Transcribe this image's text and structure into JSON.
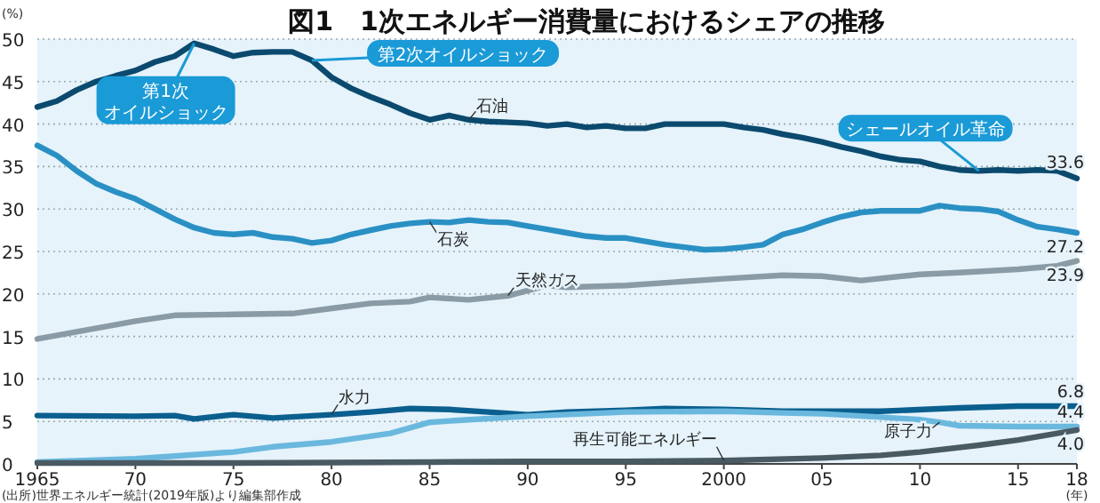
{
  "chart_data": {
    "type": "line",
    "title": "図1　1次エネルギー消費量におけるシェアの推移",
    "ylabel": "(%)",
    "xlabel": "(年)",
    "xlim": [
      1965,
      2018
    ],
    "ylim": [
      0,
      50
    ],
    "xticks": [
      {
        "value": 1965,
        "label": "1965"
      },
      {
        "value": 1970,
        "label": "70"
      },
      {
        "value": 1975,
        "label": "75"
      },
      {
        "value": 1980,
        "label": "80"
      },
      {
        "value": 1985,
        "label": "85"
      },
      {
        "value": 1990,
        "label": "90"
      },
      {
        "value": 1995,
        "label": "95"
      },
      {
        "value": 2000,
        "label": "2000"
      },
      {
        "value": 2005,
        "label": "05"
      },
      {
        "value": 2010,
        "label": "10"
      },
      {
        "value": 2015,
        "label": "15"
      },
      {
        "value": 2018,
        "label": "18"
      }
    ],
    "yticks": [
      0,
      5,
      10,
      15,
      20,
      25,
      30,
      35,
      40,
      45,
      50
    ],
    "grid": "y",
    "legend": false,
    "marker": "none",
    "line_style": "solid",
    "series": [
      {
        "name": "石油",
        "color": "#0b4a6e",
        "x": [
          1965,
          1966,
          1967,
          1968,
          1969,
          1970,
          1971,
          1972,
          1973,
          1974,
          1975,
          1976,
          1977,
          1978,
          1979,
          1980,
          1981,
          1982,
          1983,
          1984,
          1985,
          1986,
          1987,
          1988,
          1989,
          1990,
          1991,
          1992,
          1993,
          1994,
          1995,
          1996,
          1997,
          1998,
          1999,
          2000,
          2001,
          2002,
          2003,
          2004,
          2005,
          2006,
          2007,
          2008,
          2009,
          2010,
          2011,
          2012,
          2013,
          2014,
          2015,
          2016,
          2017,
          2018
        ],
        "values": [
          42,
          42.7,
          44,
          45,
          45.7,
          46.3,
          47.3,
          48,
          49.5,
          48.8,
          48,
          48.4,
          48.5,
          48.5,
          47.5,
          45.5,
          44.2,
          43.2,
          42.3,
          41.3,
          40.5,
          41,
          40.5,
          40.3,
          40.2,
          40.1,
          39.8,
          40,
          39.6,
          39.8,
          39.5,
          39.5,
          40,
          40,
          40,
          40,
          39.6,
          39.3,
          38.8,
          38.4,
          37.9,
          37.3,
          36.8,
          36.2,
          35.8,
          35.6,
          35,
          34.6,
          34.5,
          34.6,
          34.5,
          34.6,
          34.5,
          33.6
        ],
        "value_labels": [
          null,
          null,
          null,
          null,
          null,
          null,
          null,
          null,
          null,
          null,
          null,
          null,
          null,
          null,
          null,
          null,
          null,
          null,
          null,
          null,
          null,
          null,
          null,
          null,
          null,
          null,
          null,
          null,
          null,
          null,
          null,
          null,
          null,
          null,
          null,
          null,
          null,
          null,
          null,
          null,
          null,
          null,
          null,
          null,
          null,
          null,
          null,
          null,
          null,
          null,
          null,
          null,
          null,
          "33.6"
        ]
      },
      {
        "name": "石炭",
        "color": "#2a90c4",
        "x": [
          1965,
          1966,
          1967,
          1968,
          1969,
          1970,
          1971,
          1972,
          1973,
          1974,
          1975,
          1976,
          1977,
          1978,
          1979,
          1980,
          1981,
          1982,
          1983,
          1984,
          1985,
          1986,
          1987,
          1988,
          1989,
          1990,
          1991,
          1992,
          1993,
          1994,
          1995,
          1996,
          1997,
          1998,
          1999,
          2000,
          2001,
          2002,
          2003,
          2004,
          2005,
          2006,
          2007,
          2008,
          2009,
          2010,
          2011,
          2012,
          2013,
          2014,
          2015,
          2016,
          2017,
          2018
        ],
        "values": [
          37.5,
          36.3,
          34.5,
          33,
          32,
          31.2,
          30,
          28.8,
          27.8,
          27.2,
          27,
          27.2,
          26.7,
          26.5,
          26,
          26.3,
          27,
          27.5,
          28,
          28.3,
          28.5,
          28.4,
          28.7,
          28.5,
          28.4,
          28,
          27.6,
          27.2,
          26.8,
          26.6,
          26.6,
          26.2,
          25.8,
          25.5,
          25.2,
          25.3,
          25.5,
          25.8,
          27,
          27.6,
          28.4,
          29.1,
          29.6,
          29.8,
          29.8,
          29.8,
          30.4,
          30.1,
          30,
          29.7,
          28.7,
          27.9,
          27.6,
          27.2
        ],
        "value_labels": [
          null,
          null,
          null,
          null,
          null,
          null,
          null,
          null,
          null,
          null,
          null,
          null,
          null,
          null,
          null,
          null,
          null,
          null,
          null,
          null,
          null,
          null,
          null,
          null,
          null,
          null,
          null,
          null,
          null,
          null,
          null,
          null,
          null,
          null,
          null,
          null,
          null,
          null,
          null,
          null,
          null,
          null,
          null,
          null,
          null,
          null,
          null,
          null,
          null,
          null,
          null,
          null,
          null,
          "27.2"
        ]
      },
      {
        "name": "天然ガス",
        "color": "#8a9ba5",
        "x": [
          1965,
          1970,
          1972,
          1975,
          1978,
          1980,
          1982,
          1984,
          1985,
          1987,
          1989,
          1991,
          1992,
          1995,
          2000,
          2003,
          2005,
          2007,
          2010,
          2012,
          2015,
          2017,
          2018
        ],
        "values": [
          14.7,
          16.8,
          17.5,
          17.6,
          17.7,
          18.3,
          18.9,
          19.1,
          19.6,
          19.3,
          19.8,
          21,
          20.8,
          21,
          21.8,
          22.2,
          22.1,
          21.6,
          22.3,
          22.5,
          22.9,
          23.3,
          23.9
        ],
        "value_labels": [
          null,
          null,
          null,
          null,
          null,
          null,
          null,
          null,
          null,
          null,
          null,
          null,
          null,
          null,
          null,
          null,
          null,
          null,
          null,
          null,
          null,
          null,
          "23.9"
        ]
      },
      {
        "name": "水力",
        "color": "#0a5f8e",
        "x": [
          1965,
          1970,
          1972,
          1973,
          1975,
          1977,
          1980,
          1982,
          1984,
          1986,
          1988,
          1990,
          1992,
          1995,
          1997,
          2000,
          2003,
          2005,
          2008,
          2012,
          2015,
          2018
        ],
        "values": [
          5.7,
          5.6,
          5.7,
          5.3,
          5.8,
          5.4,
          5.8,
          6.1,
          6.5,
          6.4,
          6.1,
          5.8,
          6.1,
          6.3,
          6.5,
          6.4,
          6.2,
          6.2,
          6.2,
          6.6,
          6.8,
          6.8
        ],
        "value_labels": [
          null,
          null,
          null,
          null,
          null,
          null,
          null,
          null,
          null,
          null,
          null,
          null,
          null,
          null,
          null,
          null,
          null,
          null,
          null,
          null,
          null,
          "6.8"
        ]
      },
      {
        "name": "原子力",
        "color": "#6ab8de",
        "x": [
          1965,
          1970,
          1975,
          1977,
          1980,
          1983,
          1985,
          1987,
          1990,
          1995,
          2000,
          2003,
          2005,
          2008,
          2010,
          2011,
          2012,
          2015,
          2018
        ],
        "values": [
          0.2,
          0.6,
          1.4,
          2,
          2.6,
          3.6,
          4.9,
          5.2,
          5.6,
          6.1,
          6.2,
          6,
          5.9,
          5.5,
          5.2,
          4.9,
          4.5,
          4.4,
          4.4
        ],
        "value_labels": [
          null,
          null,
          null,
          null,
          null,
          null,
          null,
          null,
          null,
          null,
          null,
          null,
          null,
          null,
          null,
          null,
          null,
          null,
          "4.4"
        ]
      },
      {
        "name": "再生可能エネルギー",
        "color": "#4a5a63",
        "x": [
          1965,
          1975,
          1985,
          1990,
          1995,
          2000,
          2005,
          2008,
          2010,
          2013,
          2015,
          2018
        ],
        "values": [
          0.1,
          0.1,
          0.2,
          0.3,
          0.3,
          0.4,
          0.7,
          1,
          1.4,
          2.2,
          2.8,
          4
        ],
        "value_labels": [
          null,
          null,
          null,
          null,
          null,
          null,
          null,
          null,
          null,
          null,
          null,
          "4.0"
        ]
      }
    ],
    "annotations": [
      {
        "text": "第1次オイルショック",
        "x": 1973,
        "y": 49.5
      },
      {
        "text": "第2次オイルショック",
        "x": 1979,
        "y": 47.5
      },
      {
        "text": "シェールオイル革命",
        "x": 2013,
        "y": 34.5
      },
      "(出所)世界エネルギー統計(2019年版)より編集部作成"
    ]
  }
}
